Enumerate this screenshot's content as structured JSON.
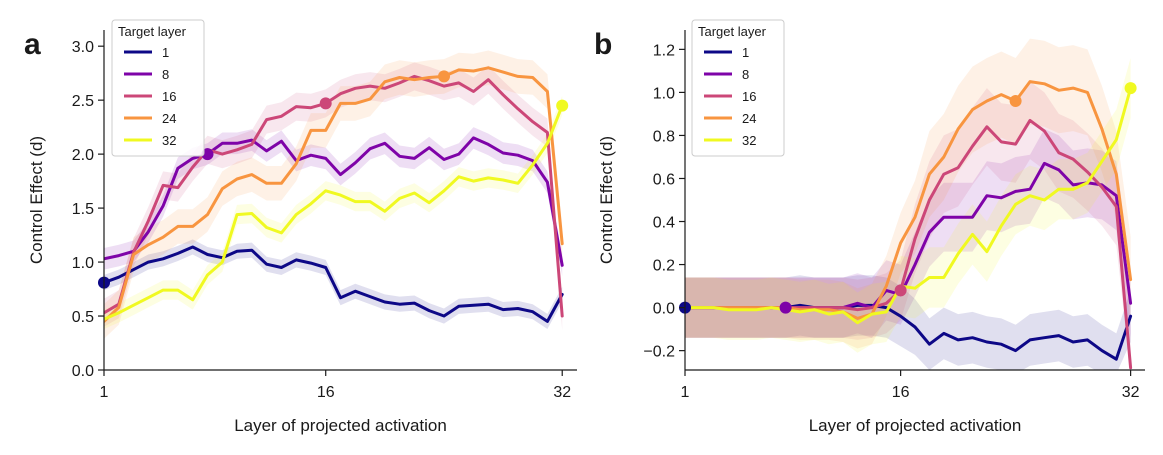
{
  "chart_data": [
    {
      "type": "line",
      "panel_label": "a",
      "xlabel": "Layer of projected activation",
      "ylabel": "Control Effect (d)",
      "xlim": [
        1,
        33
      ],
      "ylim": [
        0,
        3.15
      ],
      "xticks": [
        1,
        16,
        32
      ],
      "yticks": [
        0.0,
        0.5,
        1.0,
        1.5,
        2.0,
        2.5,
        3.0
      ],
      "ytick_labels": [
        "0.0",
        "0.5",
        "1.0",
        "1.5",
        "2.0",
        "2.5",
        "3.0"
      ],
      "legend": {
        "title": "Target layer",
        "placement": "top-left"
      },
      "series": [
        {
          "name": "1",
          "color": "#0d0887",
          "target_layer": 1,
          "values": [
            0.81,
            0.86,
            0.93,
            1.0,
            1.03,
            1.08,
            1.14,
            1.07,
            1.04,
            1.1,
            1.11,
            0.98,
            0.95,
            1.02,
            0.99,
            0.95,
            0.67,
            0.73,
            0.68,
            0.63,
            0.61,
            0.62,
            0.55,
            0.5,
            0.59,
            0.6,
            0.61,
            0.56,
            0.57,
            0.54,
            0.45,
            0.7
          ],
          "band": [
            0.07,
            0.07,
            0.07,
            0.07,
            0.07,
            0.07,
            0.07,
            0.07,
            0.07,
            0.07,
            0.07,
            0.07,
            0.07,
            0.07,
            0.07,
            0.07,
            0.07,
            0.07,
            0.07,
            0.07,
            0.07,
            0.07,
            0.07,
            0.07,
            0.07,
            0.07,
            0.07,
            0.07,
            0.07,
            0.07,
            0.07,
            0.07
          ]
        },
        {
          "name": "8",
          "color": "#7e03a8",
          "target_layer": 8,
          "values": [
            1.03,
            1.06,
            1.1,
            1.28,
            1.52,
            1.87,
            1.96,
            2.0,
            2.1,
            2.1,
            2.13,
            2.03,
            2.12,
            1.94,
            1.99,
            1.96,
            1.81,
            1.92,
            2.05,
            2.1,
            1.98,
            1.96,
            2.06,
            1.95,
            2.0,
            2.15,
            2.09,
            2.01,
            1.99,
            1.94,
            1.74,
            0.97
          ],
          "band": [
            0.1,
            0.1,
            0.1,
            0.1,
            0.1,
            0.1,
            0.1,
            0.1,
            0.1,
            0.1,
            0.1,
            0.1,
            0.1,
            0.1,
            0.1,
            0.1,
            0.1,
            0.1,
            0.1,
            0.1,
            0.1,
            0.1,
            0.1,
            0.1,
            0.1,
            0.1,
            0.1,
            0.1,
            0.1,
            0.1,
            0.1,
            0.1
          ]
        },
        {
          "name": "16",
          "color": "#cc4778",
          "target_layer": 16,
          "values": [
            0.53,
            0.61,
            1.09,
            1.38,
            1.71,
            1.69,
            1.88,
            2.04,
            2.0,
            2.04,
            2.09,
            2.32,
            2.35,
            2.44,
            2.43,
            2.47,
            2.56,
            2.61,
            2.63,
            2.61,
            2.66,
            2.72,
            2.68,
            2.63,
            2.66,
            2.58,
            2.69,
            2.55,
            2.42,
            2.3,
            2.2,
            0.5
          ],
          "band": [
            0.13,
            0.13,
            0.13,
            0.13,
            0.13,
            0.13,
            0.13,
            0.13,
            0.13,
            0.13,
            0.13,
            0.13,
            0.13,
            0.13,
            0.13,
            0.13,
            0.13,
            0.13,
            0.13,
            0.13,
            0.13,
            0.13,
            0.13,
            0.13,
            0.13,
            0.13,
            0.13,
            0.13,
            0.13,
            0.13,
            0.13,
            0.13
          ]
        },
        {
          "name": "24",
          "color": "#f89540",
          "target_layer": 24,
          "values": [
            0.45,
            0.58,
            1.07,
            1.16,
            1.23,
            1.33,
            1.33,
            1.44,
            1.68,
            1.77,
            1.81,
            1.73,
            1.73,
            1.91,
            2.22,
            2.22,
            2.47,
            2.47,
            2.51,
            2.67,
            2.71,
            2.69,
            2.71,
            2.72,
            2.78,
            2.77,
            2.8,
            2.76,
            2.72,
            2.71,
            2.58,
            1.17
          ],
          "band": [
            0.16,
            0.16,
            0.16,
            0.16,
            0.16,
            0.16,
            0.16,
            0.16,
            0.16,
            0.16,
            0.16,
            0.16,
            0.16,
            0.16,
            0.16,
            0.16,
            0.16,
            0.16,
            0.16,
            0.16,
            0.16,
            0.16,
            0.16,
            0.16,
            0.16,
            0.16,
            0.16,
            0.16,
            0.16,
            0.16,
            0.16,
            0.16
          ]
        },
        {
          "name": "32",
          "color": "#f0f921",
          "target_layer": 32,
          "values": [
            0.47,
            0.53,
            0.6,
            0.67,
            0.74,
            0.74,
            0.65,
            0.88,
            1.0,
            1.44,
            1.45,
            1.32,
            1.27,
            1.44,
            1.54,
            1.66,
            1.62,
            1.56,
            1.56,
            1.47,
            1.59,
            1.64,
            1.55,
            1.66,
            1.79,
            1.75,
            1.78,
            1.76,
            1.73,
            1.9,
            2.1,
            2.45
          ],
          "band": [
            0.09,
            0.09,
            0.09,
            0.09,
            0.09,
            0.09,
            0.09,
            0.09,
            0.09,
            0.09,
            0.09,
            0.09,
            0.09,
            0.09,
            0.09,
            0.09,
            0.09,
            0.09,
            0.09,
            0.09,
            0.09,
            0.09,
            0.09,
            0.09,
            0.09,
            0.09,
            0.09,
            0.09,
            0.09,
            0.09,
            0.09,
            0.09
          ]
        }
      ]
    },
    {
      "type": "line",
      "panel_label": "b",
      "xlabel": "Layer of projected activation",
      "ylabel": "Control Effect (d)",
      "xlim": [
        1,
        33
      ],
      "ylim": [
        -0.29,
        1.29
      ],
      "xticks": [
        1,
        16,
        32
      ],
      "yticks": [
        -0.2,
        0.0,
        0.2,
        0.4,
        0.6,
        0.8,
        1.0,
        1.2
      ],
      "ytick_labels": [
        "−0.2",
        "0.0",
        "0.2",
        "0.4",
        "0.6",
        "0.8",
        "1.0",
        "1.2"
      ],
      "legend": {
        "title": "Target layer",
        "placement": "top-left"
      },
      "series": [
        {
          "name": "1",
          "color": "#0d0887",
          "target_layer": 1,
          "values": [
            0.0,
            0.0,
            0.0,
            0.0,
            0.0,
            0.0,
            0.0,
            0.0,
            0.01,
            0.0,
            0.0,
            0.0,
            0.01,
            0.01,
            0.0,
            -0.04,
            -0.09,
            -0.17,
            -0.12,
            -0.15,
            -0.14,
            -0.16,
            -0.17,
            -0.2,
            -0.15,
            -0.14,
            -0.13,
            -0.16,
            -0.15,
            -0.2,
            -0.24,
            -0.04
          ],
          "band": [
            0.14,
            0.14,
            0.14,
            0.14,
            0.14,
            0.14,
            0.14,
            0.14,
            0.14,
            0.14,
            0.14,
            0.14,
            0.14,
            0.14,
            0.14,
            0.14,
            0.13,
            0.12,
            0.12,
            0.12,
            0.12,
            0.12,
            0.12,
            0.12,
            0.12,
            0.12,
            0.12,
            0.12,
            0.12,
            0.12,
            0.12,
            0.12
          ]
        },
        {
          "name": "8",
          "color": "#7e03a8",
          "target_layer": 8,
          "values": [
            0.0,
            0.0,
            0.0,
            0.0,
            0.0,
            0.0,
            0.0,
            0.0,
            0.0,
            0.0,
            0.0,
            0.0,
            0.02,
            0.0,
            0.08,
            0.06,
            0.2,
            0.35,
            0.42,
            0.42,
            0.42,
            0.52,
            0.51,
            0.54,
            0.55,
            0.67,
            0.64,
            0.57,
            0.58,
            0.57,
            0.52,
            0.02
          ],
          "band": [
            0.14,
            0.14,
            0.14,
            0.14,
            0.14,
            0.14,
            0.14,
            0.14,
            0.14,
            0.14,
            0.14,
            0.14,
            0.14,
            0.14,
            0.14,
            0.14,
            0.15,
            0.16,
            0.16,
            0.16,
            0.16,
            0.16,
            0.16,
            0.16,
            0.16,
            0.16,
            0.16,
            0.16,
            0.16,
            0.16,
            0.16,
            0.16
          ]
        },
        {
          "name": "16",
          "color": "#cc4778",
          "target_layer": 16,
          "values": [
            0.0,
            0.0,
            0.0,
            0.0,
            0.0,
            0.0,
            0.0,
            0.0,
            0.0,
            0.0,
            0.0,
            0.0,
            -0.01,
            0.0,
            0.02,
            0.08,
            0.32,
            0.5,
            0.62,
            0.65,
            0.75,
            0.84,
            0.77,
            0.76,
            0.87,
            0.82,
            0.72,
            0.69,
            0.63,
            0.56,
            0.47,
            -0.28
          ],
          "band": [
            0.14,
            0.14,
            0.14,
            0.14,
            0.14,
            0.14,
            0.14,
            0.14,
            0.14,
            0.14,
            0.14,
            0.14,
            0.14,
            0.14,
            0.14,
            0.14,
            0.16,
            0.18,
            0.18,
            0.18,
            0.18,
            0.18,
            0.18,
            0.18,
            0.18,
            0.18,
            0.18,
            0.18,
            0.18,
            0.18,
            0.18,
            0.18
          ]
        },
        {
          "name": "24",
          "color": "#f89540",
          "target_layer": 24,
          "values": [
            0.0,
            0.0,
            0.0,
            0.0,
            0.0,
            0.0,
            0.0,
            0.0,
            -0.01,
            -0.01,
            -0.01,
            -0.02,
            -0.05,
            -0.03,
            0.1,
            0.3,
            0.42,
            0.62,
            0.7,
            0.83,
            0.92,
            0.96,
            0.99,
            0.96,
            1.05,
            1.04,
            1.01,
            1.02,
            1.0,
            0.83,
            0.62,
            0.13
          ],
          "band": [
            0.14,
            0.14,
            0.14,
            0.14,
            0.14,
            0.14,
            0.14,
            0.14,
            0.14,
            0.14,
            0.14,
            0.14,
            0.14,
            0.14,
            0.14,
            0.14,
            0.17,
            0.2,
            0.2,
            0.2,
            0.2,
            0.2,
            0.2,
            0.2,
            0.2,
            0.2,
            0.2,
            0.2,
            0.2,
            0.2,
            0.2,
            0.2
          ]
        },
        {
          "name": "32",
          "color": "#f0f921",
          "target_layer": 32,
          "values": [
            0.0,
            0.0,
            0.0,
            -0.01,
            -0.01,
            -0.01,
            0.0,
            -0.01,
            -0.02,
            -0.01,
            -0.03,
            -0.02,
            -0.07,
            -0.03,
            -0.02,
            0.1,
            0.09,
            0.14,
            0.14,
            0.25,
            0.34,
            0.26,
            0.38,
            0.48,
            0.52,
            0.5,
            0.55,
            0.55,
            0.58,
            0.68,
            0.78,
            1.02
          ],
          "band": [
            0.14,
            0.14,
            0.14,
            0.14,
            0.14,
            0.14,
            0.14,
            0.14,
            0.14,
            0.14,
            0.14,
            0.14,
            0.14,
            0.14,
            0.14,
            0.14,
            0.14,
            0.14,
            0.14,
            0.14,
            0.14,
            0.14,
            0.14,
            0.14,
            0.14,
            0.14,
            0.14,
            0.14,
            0.14,
            0.14,
            0.14,
            0.14
          ]
        }
      ]
    }
  ]
}
